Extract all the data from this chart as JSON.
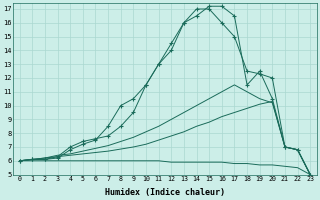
{
  "xlabel": "Humidex (Indice chaleur)",
  "bg_color": "#cceee8",
  "grid_color": "#aad8d0",
  "line_color": "#1a6b5a",
  "xlim": [
    -0.5,
    23.5
  ],
  "ylim": [
    5,
    17.4
  ],
  "xticks": [
    0,
    1,
    2,
    3,
    4,
    5,
    6,
    7,
    8,
    9,
    10,
    11,
    12,
    13,
    14,
    15,
    16,
    17,
    18,
    19,
    20,
    21,
    22,
    23
  ],
  "yticks": [
    5,
    6,
    7,
    8,
    9,
    10,
    11,
    12,
    13,
    14,
    15,
    16,
    17
  ],
  "line_bottom_x": [
    0,
    1,
    2,
    3,
    4,
    5,
    6,
    7,
    8,
    9,
    10,
    11,
    12,
    13,
    14,
    15,
    16,
    17,
    18,
    19,
    20,
    21,
    22,
    23
  ],
  "line_bottom_y": [
    6.0,
    6.0,
    6.0,
    6.0,
    6.0,
    6.0,
    6.0,
    6.0,
    6.0,
    6.0,
    6.0,
    6.0,
    5.9,
    5.9,
    5.9,
    5.9,
    5.9,
    5.8,
    5.8,
    5.7,
    5.7,
    5.6,
    5.5,
    5.0
  ],
  "line_linear1_x": [
    0,
    1,
    2,
    3,
    4,
    5,
    6,
    7,
    8,
    9,
    10,
    11,
    12,
    13,
    14,
    15,
    16,
    17,
    18,
    19,
    20,
    21,
    22,
    23
  ],
  "line_linear1_y": [
    6.0,
    6.1,
    6.2,
    6.3,
    6.4,
    6.5,
    6.6,
    6.7,
    6.85,
    7.0,
    7.2,
    7.5,
    7.8,
    8.1,
    8.5,
    8.8,
    9.2,
    9.5,
    9.8,
    10.1,
    10.3,
    7.0,
    6.8,
    5.0
  ],
  "line_linear2_x": [
    0,
    1,
    2,
    3,
    4,
    5,
    6,
    7,
    8,
    9,
    10,
    11,
    12,
    13,
    14,
    15,
    16,
    17,
    18,
    19,
    20,
    21,
    22,
    23
  ],
  "line_linear2_y": [
    6.0,
    6.1,
    6.2,
    6.4,
    6.5,
    6.7,
    6.9,
    7.1,
    7.4,
    7.7,
    8.1,
    8.5,
    9.0,
    9.5,
    10.0,
    10.5,
    11.0,
    11.5,
    11.0,
    10.5,
    10.2,
    7.0,
    6.8,
    5.0
  ],
  "line_jagged1_x": [
    0,
    1,
    2,
    3,
    4,
    5,
    6,
    7,
    8,
    9,
    10,
    11,
    12,
    13,
    14,
    15,
    16,
    17,
    18,
    19,
    20,
    21,
    22,
    23
  ],
  "line_jagged1_y": [
    6.0,
    6.1,
    6.1,
    6.2,
    6.8,
    7.2,
    7.5,
    8.5,
    10.0,
    10.5,
    11.5,
    13.0,
    14.5,
    16.0,
    17.0,
    17.0,
    16.0,
    15.0,
    12.5,
    12.3,
    12.0,
    7.0,
    6.8,
    5.0
  ],
  "line_jagged2_x": [
    0,
    1,
    2,
    3,
    4,
    5,
    6,
    7,
    8,
    9,
    10,
    11,
    12,
    13,
    14,
    15,
    16,
    17,
    18,
    19,
    20,
    21,
    22,
    23
  ],
  "line_jagged2_y": [
    6.0,
    6.1,
    6.1,
    6.3,
    7.0,
    7.4,
    7.6,
    7.8,
    8.5,
    9.5,
    11.5,
    13.0,
    14.0,
    16.0,
    16.5,
    17.2,
    17.2,
    16.5,
    11.5,
    12.5,
    10.5,
    7.0,
    6.8,
    5.0
  ]
}
